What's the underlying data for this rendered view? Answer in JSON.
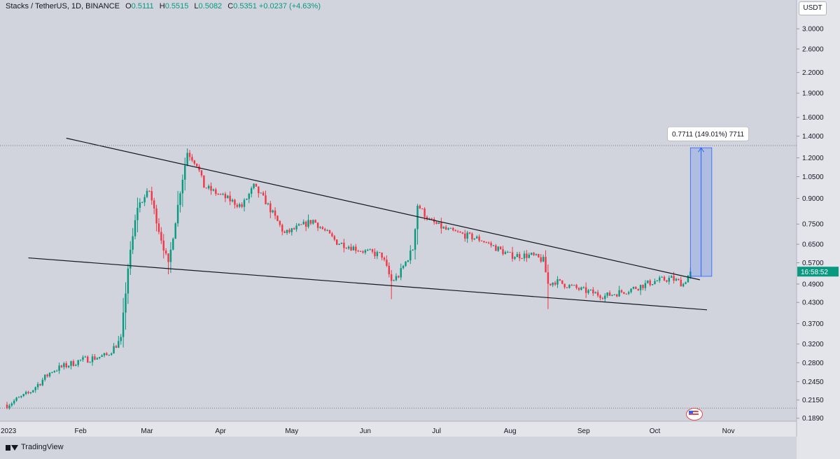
{
  "legend": {
    "symbol": "Stacks / TetherUS, 1D, BINANCE",
    "open_label": "O",
    "open": "0.5111",
    "high_label": "H",
    "high": "0.5515",
    "low_label": "L",
    "low": "0.5082",
    "close_label": "C",
    "close": "0.5351",
    "change": "+0.0237 (+4.63%)"
  },
  "currency_unit": "USDT",
  "current_price_tag": "16:58:52",
  "measure_label": "0.7711 (149.01%) 7711",
  "branding": "TradingView",
  "colors": {
    "up": "#089981",
    "down": "#f23645",
    "background": "#d1d4dc",
    "measure": "#2962ff"
  },
  "chart_data": {
    "type": "candlestick",
    "y_scale": "log",
    "ylim": [
      0.185,
      3.3
    ],
    "y_ticks": [
      "3.0000",
      "2.6000",
      "2.2000",
      "1.9000",
      "1.6000",
      "1.4000",
      "1.2000",
      "1.0500",
      "0.9000",
      "0.7500",
      "0.6500",
      "0.5700",
      "0.4900",
      "0.4300",
      "0.3700",
      "0.3200",
      "0.2800",
      "0.2450",
      "0.2150",
      "0.1890"
    ],
    "x_ticks": [
      "2023",
      "Feb",
      "Mar",
      "Apr",
      "May",
      "Jun",
      "Jul",
      "Aug",
      "Sep",
      "Oct",
      "Nov"
    ],
    "price_path": [
      [
        "2023-01-01",
        0.208
      ],
      [
        "2023-01-10",
        0.225
      ],
      [
        "2023-01-20",
        0.265
      ],
      [
        "2023-02-01",
        0.285
      ],
      [
        "2023-02-12",
        0.295
      ],
      [
        "2023-02-18",
        0.33
      ],
      [
        "2023-02-21",
        0.55
      ],
      [
        "2023-02-25",
        0.85
      ],
      [
        "2023-03-02",
        0.95
      ],
      [
        "2023-03-06",
        0.72
      ],
      [
        "2023-03-10",
        0.56
      ],
      [
        "2023-03-15",
        0.95
      ],
      [
        "2023-03-18",
        1.25
      ],
      [
        "2023-03-22",
        1.15
      ],
      [
        "2023-03-25",
        0.98
      ],
      [
        "2023-04-01",
        0.92
      ],
      [
        "2023-04-10",
        0.85
      ],
      [
        "2023-04-15",
        0.98
      ],
      [
        "2023-04-20",
        0.88
      ],
      [
        "2023-04-28",
        0.7
      ],
      [
        "2023-05-10",
        0.77
      ],
      [
        "2023-05-20",
        0.66
      ],
      [
        "2023-05-31",
        0.62
      ],
      [
        "2023-06-08",
        0.6
      ],
      [
        "2023-06-12",
        0.5
      ],
      [
        "2023-06-15",
        0.52
      ],
      [
        "2023-06-21",
        0.63
      ],
      [
        "2023-06-23",
        0.86
      ],
      [
        "2023-06-28",
        0.77
      ],
      [
        "2023-07-05",
        0.72
      ],
      [
        "2023-07-20",
        0.67
      ],
      [
        "2023-08-01",
        0.6
      ],
      [
        "2023-08-10",
        0.6
      ],
      [
        "2023-08-15",
        0.58
      ],
      [
        "2023-08-17",
        0.49
      ],
      [
        "2023-08-20",
        0.5
      ],
      [
        "2023-08-31",
        0.47
      ],
      [
        "2023-09-10",
        0.45
      ],
      [
        "2023-09-20",
        0.47
      ],
      [
        "2023-10-01",
        0.5
      ],
      [
        "2023-10-08",
        0.51
      ],
      [
        "2023-10-13",
        0.49
      ],
      [
        "2023-10-16",
        0.535
      ]
    ],
    "last_candle": {
      "date": "2023-10-16",
      "open": 0.5111,
      "high": 0.5515,
      "low": 0.5082,
      "close": 0.5351
    },
    "trendlines": [
      {
        "from": [
          "2023-01-26",
          1.38
        ],
        "to": [
          "2023-10-20",
          0.505
        ]
      },
      {
        "from": [
          "2023-01-10",
          0.59
        ],
        "to": [
          "2023-10-23",
          0.408
        ]
      }
    ],
    "measure": {
      "from_date": "2023-10-16",
      "to_date": "2023-10-25",
      "from_price": 0.5175,
      "to_price": 1.289,
      "change": 0.7711,
      "change_pct": 149.01
    },
    "grid": false,
    "legend_position": "top-left"
  }
}
